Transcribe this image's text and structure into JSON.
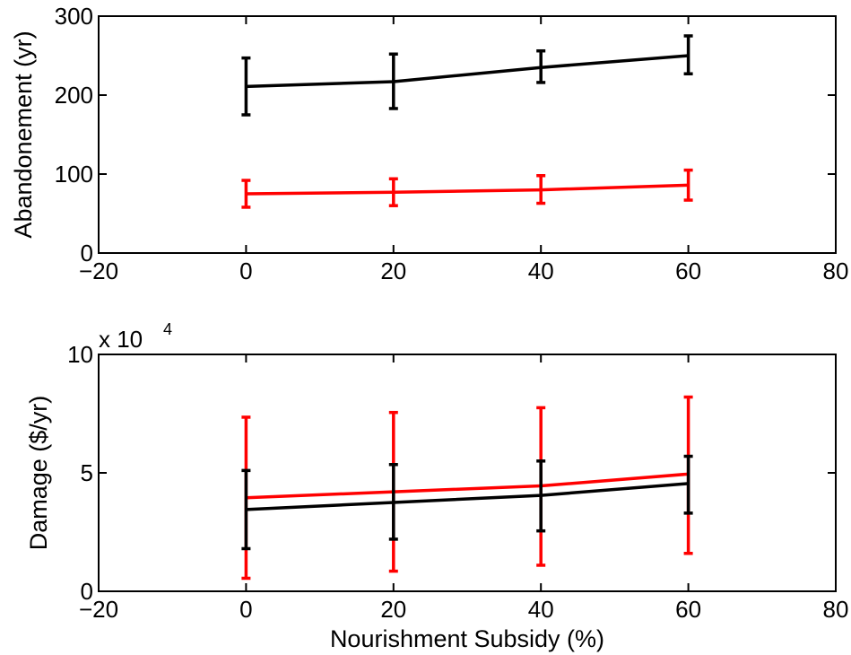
{
  "chart_data": [
    {
      "type": "line",
      "ylabel": "Abandonement (yr)",
      "xlabel": "",
      "xlim": [
        -20,
        80
      ],
      "ylim": [
        0,
        300
      ],
      "xticks": [
        -20,
        0,
        20,
        40,
        60,
        80
      ],
      "xtick_labels": [
        "−20",
        "0",
        "20",
        "40",
        "60",
        "80"
      ],
      "yticks": [
        0,
        100,
        200,
        300
      ],
      "ytick_labels": [
        "0",
        "100",
        "200",
        "300"
      ],
      "exponent_label": "",
      "grid": false,
      "x": [
        0,
        20,
        40,
        60
      ],
      "series": [
        {
          "color": "#000000",
          "values": [
            211,
            217,
            235,
            250
          ],
          "err_low": [
            175,
            183,
            216,
            227
          ],
          "err_high": [
            247,
            252,
            256,
            275
          ]
        },
        {
          "color": "#ff0000",
          "values": [
            75,
            77,
            80,
            86
          ],
          "err_low": [
            58,
            60,
            63,
            67
          ],
          "err_high": [
            92,
            94,
            98,
            105
          ]
        }
      ]
    },
    {
      "type": "line",
      "ylabel": "Damage ($/yr)",
      "xlabel": "Nourishment Subsidy (%)",
      "xlim": [
        -20,
        80
      ],
      "ylim": [
        0,
        10
      ],
      "xticks": [
        -20,
        0,
        20,
        40,
        60,
        80
      ],
      "xtick_labels": [
        "−20",
        "0",
        "20",
        "40",
        "60",
        "80"
      ],
      "yticks": [
        0,
        5,
        10
      ],
      "ytick_labels": [
        "0",
        "5",
        "10"
      ],
      "exponent_label": "x 10",
      "exponent_power": "4",
      "grid": false,
      "x": [
        0,
        20,
        40,
        60
      ],
      "series": [
        {
          "color": "#ff0000",
          "values": [
            3.95,
            4.2,
            4.45,
            4.95
          ],
          "err_low": [
            0.55,
            0.85,
            1.1,
            1.6
          ],
          "err_high": [
            7.35,
            7.55,
            7.75,
            8.2
          ]
        },
        {
          "color": "#000000",
          "values": [
            3.45,
            3.75,
            4.05,
            4.55
          ],
          "err_low": [
            1.8,
            2.2,
            2.55,
            3.3
          ],
          "err_high": [
            5.1,
            5.35,
            5.5,
            5.7
          ]
        }
      ]
    }
  ]
}
